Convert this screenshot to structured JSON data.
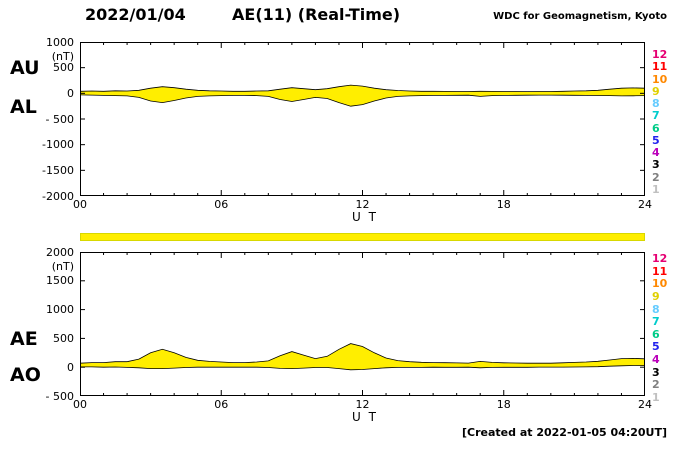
{
  "header": {
    "date": "2022/01/04",
    "title": "AE(11) (Real-Time)",
    "org": "WDC for Geomagnetism, Kyoto"
  },
  "footer": {
    "created": "[Created at 2022-01-05 04:20UT]"
  },
  "colors": {
    "trace_fill": "#ffee00",
    "trace_stroke": "#000000",
    "station_bar": "#ffee00"
  },
  "station_legend": {
    "values": [
      12,
      11,
      10,
      9,
      8,
      7,
      6,
      5,
      4,
      3,
      2,
      1
    ],
    "colors": [
      "#e60073",
      "#ff0000",
      "#ff8800",
      "#e0d000",
      "#66ccff",
      "#00cccc",
      "#00cc88",
      "#2222ee",
      "#bb00bb",
      "#000000",
      "#808080",
      "#c0c0c0"
    ]
  },
  "panels": [
    {
      "big_labels": [
        "AU",
        "AL"
      ],
      "unit": "(nT)",
      "ymax": 1000,
      "ymin": -2000,
      "ytick_step": 500,
      "ytick_labels": [
        "1000",
        "500",
        "0",
        "- 500",
        "-1000",
        "-1500",
        "-2000"
      ],
      "xtick_labels": [
        "00",
        "06",
        "12",
        "18",
        "24"
      ],
      "xaxis_title": "U T"
    },
    {
      "big_labels": [
        "AE",
        "AO"
      ],
      "unit": "(nT)",
      "ymax": 2000,
      "ymin": -500,
      "ytick_step": 500,
      "ytick_labels": [
        "2000",
        "1500",
        "1000",
        "500",
        "0",
        "- 500"
      ],
      "xtick_labels": [
        "00",
        "06",
        "12",
        "18",
        "24"
      ],
      "xaxis_title": "U T"
    }
  ],
  "chart_data": [
    {
      "type": "area",
      "title": "AU and AL auroral electrojet indices (Real-Time)",
      "xlabel": "U T",
      "ylabel": "nT",
      "xlim": [
        0,
        24
      ],
      "ylim": [
        -2000,
        1000
      ],
      "x": [
        0,
        0.5,
        1,
        1.5,
        2,
        2.5,
        3,
        3.5,
        4,
        4.5,
        5,
        5.5,
        6,
        6.5,
        7,
        7.5,
        8,
        8.5,
        9,
        9.5,
        10,
        10.5,
        11,
        11.5,
        12,
        12.5,
        13,
        13.5,
        14,
        14.5,
        15,
        15.5,
        16,
        16.5,
        17,
        17.5,
        18,
        18.5,
        19,
        19.5,
        20,
        20.5,
        21,
        21.5,
        22,
        22.5,
        23,
        23.5,
        24
      ],
      "series": [
        {
          "name": "AU",
          "values": [
            40,
            45,
            40,
            50,
            45,
            60,
            100,
            130,
            110,
            80,
            60,
            50,
            45,
            40,
            40,
            45,
            50,
            80,
            110,
            90,
            70,
            90,
            130,
            160,
            140,
            100,
            70,
            55,
            45,
            40,
            40,
            38,
            36,
            35,
            40,
            38,
            36,
            35,
            34,
            35,
            36,
            40,
            45,
            50,
            60,
            80,
            100,
            105,
            100
          ]
        },
        {
          "name": "AL",
          "values": [
            -30,
            -35,
            -40,
            -45,
            -50,
            -80,
            -150,
            -180,
            -140,
            -90,
            -60,
            -50,
            -45,
            -40,
            -40,
            -45,
            -60,
            -120,
            -160,
            -120,
            -80,
            -100,
            -180,
            -250,
            -220,
            -150,
            -90,
            -60,
            -50,
            -45,
            -40,
            -40,
            -38,
            -36,
            -60,
            -45,
            -40,
            -38,
            -36,
            -35,
            -34,
            -36,
            -38,
            -40,
            -42,
            -45,
            -50,
            -48,
            -45
          ]
        }
      ]
    },
    {
      "type": "area",
      "title": "AE and AO auroral electrojet indices (Real-Time)",
      "xlabel": "U T",
      "ylabel": "nT",
      "xlim": [
        0,
        24
      ],
      "ylim": [
        -500,
        2000
      ],
      "x": [
        0,
        0.5,
        1,
        1.5,
        2,
        2.5,
        3,
        3.5,
        4,
        4.5,
        5,
        5.5,
        6,
        6.5,
        7,
        7.5,
        8,
        8.5,
        9,
        9.5,
        10,
        10.5,
        11,
        11.5,
        12,
        12.5,
        13,
        13.5,
        14,
        14.5,
        15,
        15.5,
        16,
        16.5,
        17,
        17.5,
        18,
        18.5,
        19,
        19.5,
        20,
        20.5,
        21,
        21.5,
        22,
        22.5,
        23,
        23.5,
        24
      ],
      "series": [
        {
          "name": "AE",
          "values": [
            70,
            80,
            80,
            95,
            95,
            140,
            250,
            310,
            250,
            170,
            120,
            100,
            90,
            80,
            80,
            90,
            110,
            200,
            270,
            210,
            150,
            190,
            310,
            410,
            360,
            250,
            160,
            115,
            95,
            85,
            80,
            78,
            74,
            71,
            100,
            83,
            76,
            73,
            70,
            69,
            69,
            76,
            83,
            90,
            102,
            125,
            150,
            153,
            145
          ]
        },
        {
          "name": "AO",
          "values": [
            5,
            5,
            0,
            3,
            -3,
            -10,
            -25,
            -25,
            -15,
            -5,
            0,
            0,
            0,
            0,
            0,
            0,
            -5,
            -20,
            -25,
            -15,
            -5,
            -5,
            -25,
            -45,
            -40,
            -25,
            -10,
            -3,
            -3,
            -3,
            0,
            -1,
            -1,
            0,
            -10,
            -4,
            -2,
            -2,
            -1,
            1,
            1,
            2,
            4,
            5,
            9,
            18,
            25,
            29,
            28
          ]
        }
      ]
    }
  ]
}
